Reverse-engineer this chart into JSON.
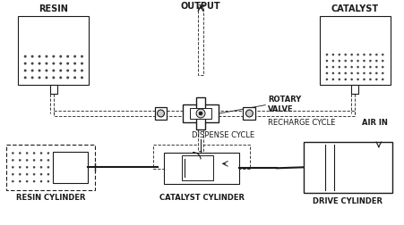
{
  "labels": {
    "output": "OUTPUT",
    "resin": "RESIN",
    "catalyst": "CATALYST",
    "rotary_valve": "ROTARY\nVALVE",
    "dispense_cycle": "DISPENSE CYCLE",
    "recharge_cycle": "RECHARGE CYCLE",
    "air_in": "AIR IN",
    "resin_cylinder": "RESIN CYLINDER",
    "catalyst_cylinder": "CATALYST CYLINDER",
    "drive_cylinder": "DRIVE CYLINDER"
  },
  "lc": "#1a1a1a"
}
